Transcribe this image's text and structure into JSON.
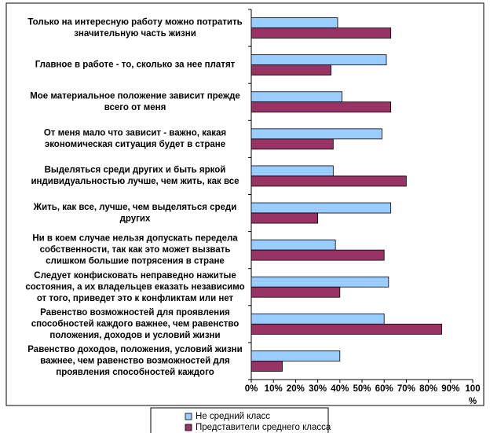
{
  "chart_data": {
    "type": "bar",
    "orientation": "horizontal",
    "categories": [
      [
        "Только на интересную работу можно потратить",
        "значительную часть жизни"
      ],
      [
        "Главное в работе - то, сколько за нее платят"
      ],
      [
        "Мое материальное положение зависит прежде",
        "всего от меня"
      ],
      [
        "От меня мало что зависит - важно, какая",
        "экономическая ситуация будет в стране"
      ],
      [
        "Выделяться среди других и быть яркой",
        "индивидуальностью лучше, чем жить, как все"
      ],
      [
        "Жить, как все, лучше, чем выделяться среди",
        "других"
      ],
      [
        "Ни в коем случае нельзя допускать передела",
        "собственности, так как это может вызвать",
        "слишком большие потрясения в стране"
      ],
      [
        "Следует конфисковать неправедно нажитые",
        "состояния, а их владельцев еказать независимо",
        "от того, приведет это к конфликтам или нет"
      ],
      [
        "Равенство возможностей для проявления",
        "способностей каждого важнее, чем равенство",
        "положения, доходов и условий жизни"
      ],
      [
        "Равенство доходов, положения, условий жизни",
        "важнее, чем равенство возможностей для",
        "проявления способностей каждого"
      ]
    ],
    "series": [
      {
        "name": "Не средний класс",
        "color": "#99ccff",
        "values": [
          39,
          61,
          41,
          59,
          37,
          63,
          38,
          62,
          60,
          40
        ]
      },
      {
        "name": "Представители среднего класса",
        "color": "#993366",
        "values": [
          63,
          36,
          63,
          37,
          70,
          30,
          60,
          40,
          86,
          14
        ]
      }
    ],
    "xlim": [
      0,
      100
    ],
    "xticks": [
      {
        "value": 0,
        "label": "0%"
      },
      {
        "value": 10,
        "label": "10%"
      },
      {
        "value": 20,
        "label": "20%"
      },
      {
        "value": 30,
        "label": "30%"
      },
      {
        "value": 40,
        "label": "40%"
      },
      {
        "value": 50,
        "label": "50%"
      },
      {
        "value": 60,
        "label": "60%"
      },
      {
        "value": 70,
        "label": "70%"
      },
      {
        "value": 80,
        "label": "80%"
      },
      {
        "value": 90,
        "label": "90%"
      },
      100
    ],
    "x_label": "%"
  }
}
